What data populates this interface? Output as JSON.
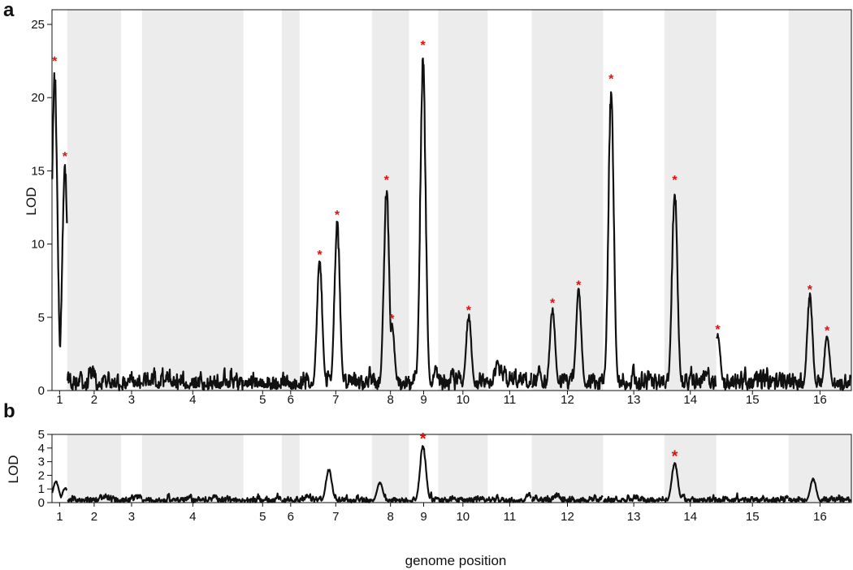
{
  "chart_data": [
    {
      "panel": "a",
      "type": "line",
      "ylabel": "LOD",
      "xlabel": "",
      "ylim": [
        0,
        26
      ],
      "yticks": [
        0,
        5,
        10,
        15,
        20,
        25
      ],
      "chromosomes": [
        "1",
        "2",
        "3",
        "4",
        "5",
        "6",
        "7",
        "8",
        "9",
        "10",
        "11",
        "12",
        "13",
        "14",
        "15",
        "16"
      ],
      "chromosome_spans": [
        [
          0,
          230
        ],
        [
          230,
          1043
        ],
        [
          1043,
          1360
        ],
        [
          1360,
          2891
        ],
        [
          2891,
          3468
        ],
        [
          3468,
          3738
        ],
        [
          3738,
          4829
        ],
        [
          4829,
          5391
        ],
        [
          5391,
          5830
        ],
        [
          5830,
          6576
        ],
        [
          6576,
          7242
        ],
        [
          7242,
          8320
        ],
        [
          8320,
          9244
        ],
        [
          9244,
          10028
        ],
        [
          10028,
          11119
        ],
        [
          11119,
          12067
        ]
      ],
      "x_units": "kb",
      "peaks": [
        {
          "chrom": 1,
          "x": 40,
          "lod": 22.3
        },
        {
          "chrom": 1,
          "x": 195,
          "lod": 15.8
        },
        {
          "chrom": 7,
          "x": 4040,
          "lod": 9.1
        },
        {
          "chrom": 7,
          "x": 4305,
          "lod": 11.8
        },
        {
          "chrom": 8,
          "x": 5050,
          "lod": 14.2
        },
        {
          "chrom": 8,
          "x": 5130,
          "lod": 4.7
        },
        {
          "chrom": 9,
          "x": 5600,
          "lod": 23.4
        },
        {
          "chrom": 10,
          "x": 6290,
          "lod": 5.3
        },
        {
          "chrom": 12,
          "x": 7555,
          "lod": 5.8
        },
        {
          "chrom": 12,
          "x": 7950,
          "lod": 7.0
        },
        {
          "chrom": 13,
          "x": 8440,
          "lod": 21.1
        },
        {
          "chrom": 14,
          "x": 9400,
          "lod": 14.2
        },
        {
          "chrom": 15,
          "x": 10050,
          "lod": 4.0
        },
        {
          "chrom": 16,
          "x": 11440,
          "lod": 6.7
        },
        {
          "chrom": 16,
          "x": 11700,
          "lod": 3.9
        }
      ],
      "star_label": "*"
    },
    {
      "panel": "b",
      "type": "line",
      "ylabel": "LOD",
      "xlabel": "genome position",
      "ylim": [
        0,
        5
      ],
      "yticks": [
        0,
        1,
        2,
        3,
        4,
        5
      ],
      "chromosomes": [
        "1",
        "2",
        "3",
        "4",
        "5",
        "6",
        "7",
        "8",
        "9",
        "10",
        "11",
        "12",
        "13",
        "14",
        "15",
        "16"
      ],
      "chromosome_spans": [
        [
          0,
          230
        ],
        [
          230,
          1043
        ],
        [
          1043,
          1360
        ],
        [
          1360,
          2891
        ],
        [
          2891,
          3468
        ],
        [
          3468,
          3738
        ],
        [
          3738,
          4829
        ],
        [
          4829,
          5391
        ],
        [
          5391,
          5830
        ],
        [
          5830,
          6576
        ],
        [
          6576,
          7242
        ],
        [
          7242,
          8320
        ],
        [
          8320,
          9244
        ],
        [
          9244,
          10028
        ],
        [
          10028,
          11119
        ],
        [
          11119,
          12067
        ]
      ],
      "x_units": "kb",
      "peaks": [
        {
          "chrom": 1,
          "x": 60,
          "lod": 1.6
        },
        {
          "chrom": 1,
          "x": 200,
          "lod": 1.1
        },
        {
          "chrom": 7,
          "x": 4180,
          "lod": 2.5
        },
        {
          "chrom": 8,
          "x": 4950,
          "lod": 1.5
        },
        {
          "chrom": 9,
          "x": 5600,
          "lod": 4.3
        },
        {
          "chrom": 14,
          "x": 9400,
          "lod": 3.0
        },
        {
          "chrom": 16,
          "x": 11490,
          "lod": 1.8
        }
      ],
      "star_peaks": [
        5600,
        9400
      ],
      "star_label": "*"
    }
  ],
  "panels": {
    "a": {
      "letter": "a",
      "ylabel": "LOD"
    },
    "b": {
      "letter": "b",
      "ylabel": "LOD"
    }
  },
  "xlabel": "genome position",
  "colors": {
    "shade": "#ececec",
    "line": "#111111",
    "star": "#e01010"
  }
}
